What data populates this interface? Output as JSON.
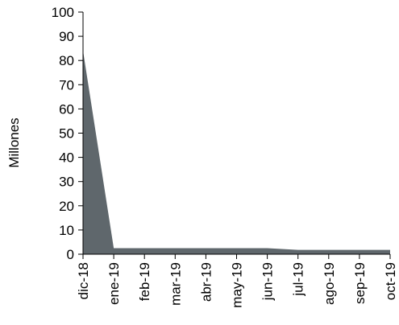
{
  "chart_data": {
    "type": "area",
    "title": "",
    "xlabel": "",
    "ylabel": "Millones",
    "ylim": [
      0,
      100
    ],
    "yticks": [
      "0",
      "10",
      "20",
      "30",
      "40",
      "50",
      "60",
      "70",
      "80",
      "90",
      "100"
    ],
    "categories": [
      "dic-18",
      "ene-19",
      "feb-19",
      "mar-19",
      "abr-19",
      "may-19",
      "jun-19",
      "jul-19",
      "ago-19",
      "sep-19",
      "oct-19"
    ],
    "values": [
      84,
      2.5,
      2.5,
      2.5,
      2.5,
      2.5,
      2.5,
      1.8,
      1.8,
      1.8,
      1.8
    ],
    "fill_color": "#5f676c",
    "axis_color": "#000000",
    "grid": false,
    "legend": "none"
  }
}
